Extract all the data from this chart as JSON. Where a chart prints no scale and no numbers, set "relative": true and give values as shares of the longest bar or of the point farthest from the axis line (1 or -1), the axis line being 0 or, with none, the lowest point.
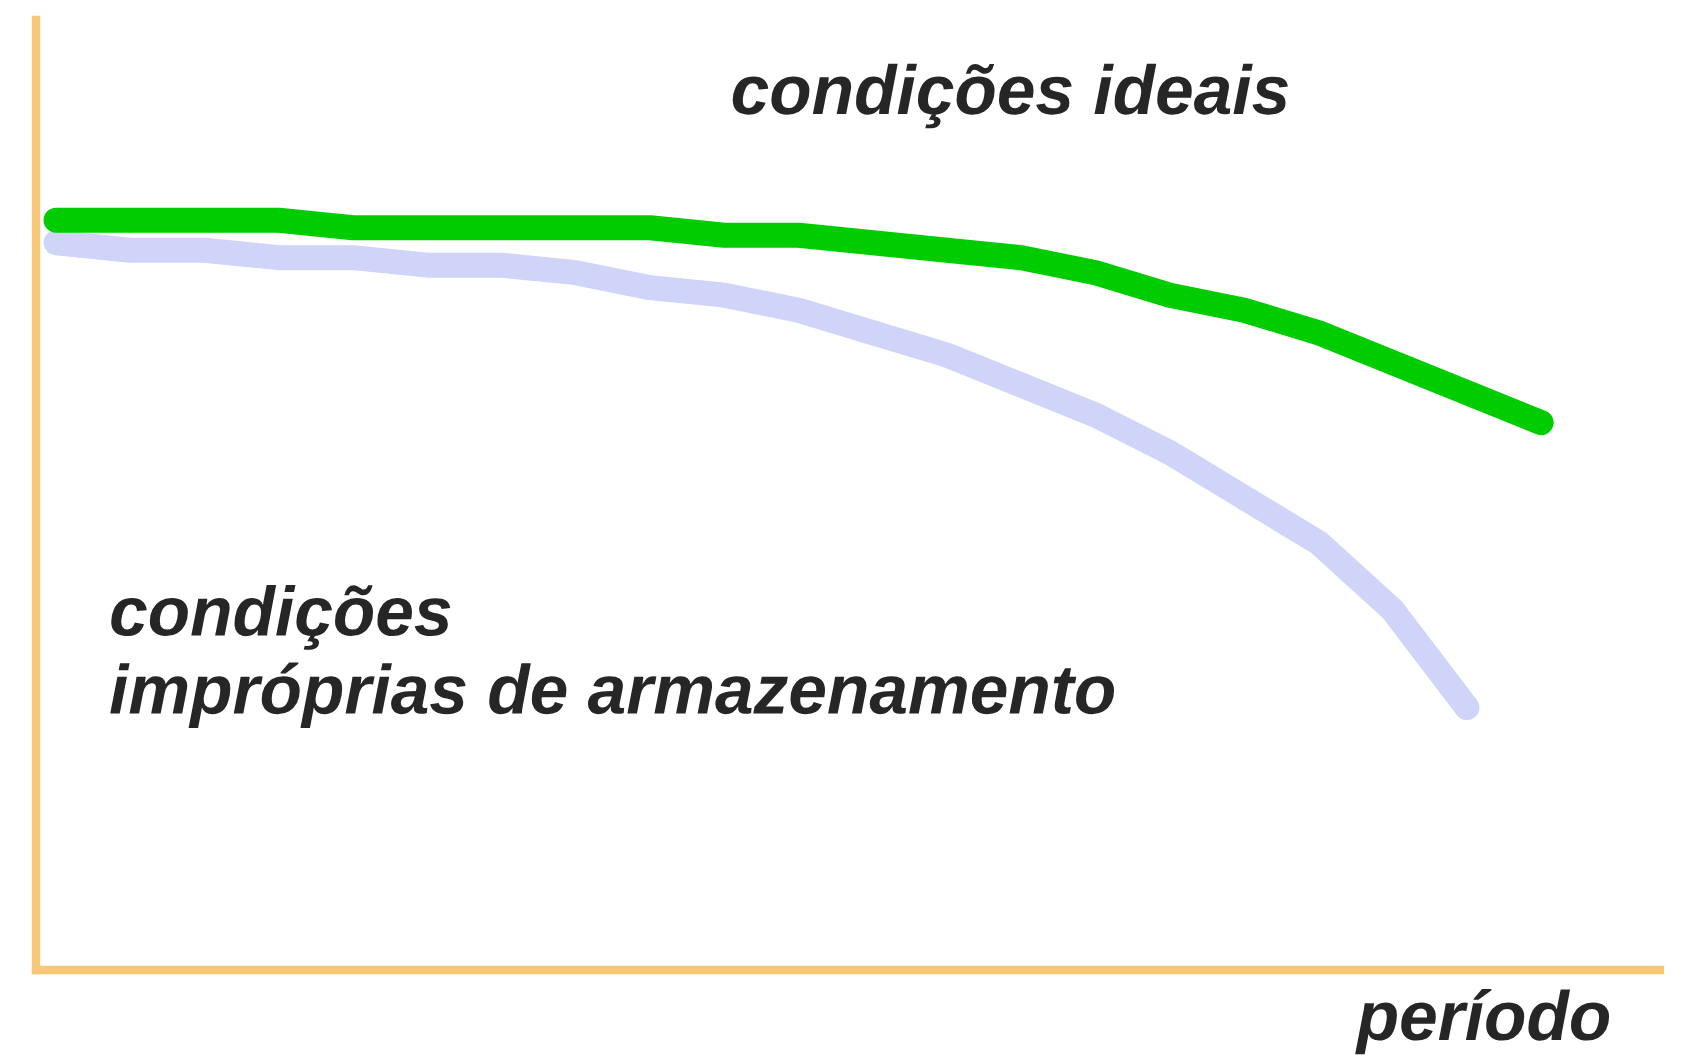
{
  "chart_data": {
    "type": "line",
    "relative": true,
    "xlabel": "período",
    "tick_labels": false,
    "legend": false,
    "line_style": "solid",
    "categories": [
      null,
      null,
      null,
      null,
      null,
      null,
      null,
      null,
      null,
      null,
      null,
      null,
      null,
      null,
      null,
      null,
      null,
      null,
      null,
      null,
      null
    ],
    "series": [
      {
        "name": "condições ideais",
        "color": "#00cc00",
        "values": [
          1.0,
          1.0,
          1.0,
          1.0,
          0.99,
          0.99,
          0.99,
          0.99,
          0.99,
          0.98,
          0.98,
          0.97,
          0.96,
          0.95,
          0.93,
          0.9,
          0.88,
          0.85,
          0.81,
          0.77,
          0.73
        ]
      },
      {
        "name": "condições\nimpróprias de armazenamento",
        "color": "#d0d4f8",
        "values": [
          0.97,
          0.96,
          0.96,
          0.95,
          0.95,
          0.94,
          0.94,
          0.93,
          0.91,
          0.9,
          0.88,
          0.85,
          0.82,
          0.78,
          0.74,
          0.69,
          0.63,
          0.57,
          0.48,
          0.35,
          null
        ]
      }
    ]
  }
}
